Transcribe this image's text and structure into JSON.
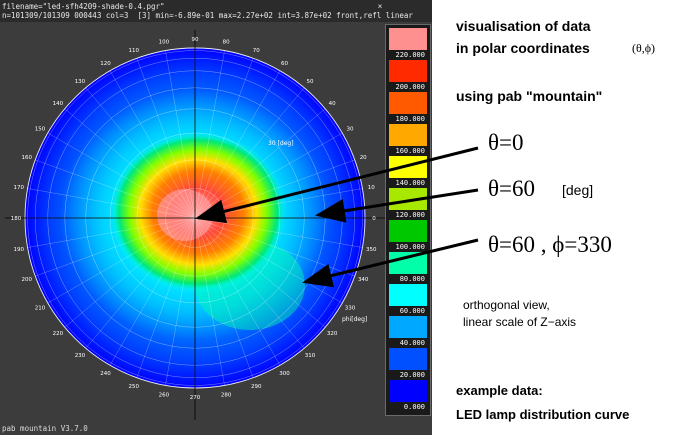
{
  "window": {
    "title_line_1": "filename=\"led-sfh4209-shade-0.4.pgr\"",
    "title_line_2": "n=101309/101309 000443 col=3  [3] min=-6.89e-01 max=2.27e+02 int=3.87e+02 front,refl linear",
    "close_glyph": "×",
    "status_text": "pab mountain V3.7.0"
  },
  "polar_plot": {
    "theta_unit_label": "30 [deg]",
    "phi_unit_label": "phi[deg]",
    "azimuth_labels": [
      "0",
      "10",
      "20",
      "30",
      "40",
      "50",
      "60",
      "70",
      "80",
      "90",
      "100",
      "110",
      "120",
      "130",
      "140",
      "150",
      "160",
      "170",
      "180",
      "190",
      "200",
      "210",
      "220",
      "230",
      "240",
      "250",
      "260",
      "270",
      "280",
      "290",
      "300",
      "310",
      "320",
      "330",
      "340",
      "350"
    ],
    "colors": {
      "background": "#3c3c3c",
      "grid": "#ffffff",
      "crosshair": "#000000"
    }
  },
  "colorbar": {
    "segments": [
      {
        "label": "220.000",
        "color": "#ff9090"
      },
      {
        "label": "200.000",
        "color": "#ff2a00"
      },
      {
        "label": "180.000",
        "color": "#ff5a00"
      },
      {
        "label": "160.000",
        "color": "#ffa800"
      },
      {
        "label": "140.000",
        "color": "#ffff00"
      },
      {
        "label": "120.000",
        "color": "#a8e800"
      },
      {
        "label": "100.000",
        "color": "#00c800"
      },
      {
        "label": "80.000",
        "color": "#00ffa8"
      },
      {
        "label": "60.000",
        "color": "#00ffff"
      },
      {
        "label": "40.000",
        "color": "#00a8ff"
      },
      {
        "label": "20.000",
        "color": "#0050ff"
      },
      {
        "label": "0.000",
        "color": "#0000ff"
      }
    ]
  },
  "annotations": {
    "heading_line_1": "visualisation of data",
    "heading_line_2": "in polar coordinates",
    "heading_coords": "(θ,ϕ)",
    "heading_line_3": "using pab \"mountain\"",
    "label_theta0": "θ=0",
    "label_theta60": "θ=60",
    "label_deg": "[deg]",
    "label_theta60_phi330": "θ=60 , ϕ=330",
    "note_line_1": "orthogonal view,",
    "note_line_2": "linear scale of Z−axis",
    "example_label": "example data:",
    "example_name": "LED lamp distribution curve"
  }
}
